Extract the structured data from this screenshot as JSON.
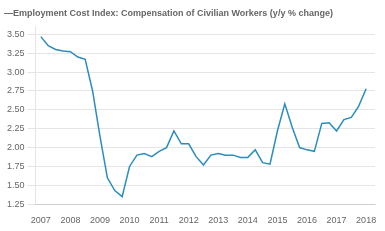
{
  "chart_data": {
    "type": "line",
    "title": "—Employment Cost Index: Compensation of Civilian Workers (y/y % change)",
    "color": "#2b8cbe",
    "x": [
      2007.0,
      2007.25,
      2007.5,
      2007.75,
      2008.0,
      2008.25,
      2008.5,
      2008.75,
      2009.0,
      2009.25,
      2009.5,
      2009.75,
      2010.0,
      2010.25,
      2010.5,
      2010.75,
      2011.0,
      2011.25,
      2011.5,
      2011.75,
      2012.0,
      2012.25,
      2012.5,
      2012.75,
      2013.0,
      2013.25,
      2013.5,
      2013.75,
      2014.0,
      2014.25,
      2014.5,
      2014.75,
      2015.0,
      2015.25,
      2015.5,
      2015.75,
      2016.0,
      2016.25,
      2016.5,
      2016.75,
      2017.0,
      2017.25,
      2017.5,
      2017.75,
      2018.0
    ],
    "values": [
      3.47,
      3.35,
      3.3,
      3.28,
      3.27,
      3.2,
      3.17,
      2.75,
      2.15,
      1.6,
      1.43,
      1.35,
      1.75,
      1.9,
      1.92,
      1.88,
      1.95,
      2.0,
      2.22,
      2.05,
      2.05,
      1.88,
      1.77,
      1.9,
      1.92,
      1.9,
      1.9,
      1.87,
      1.87,
      1.97,
      1.8,
      1.78,
      2.22,
      2.58,
      2.27,
      2.0,
      1.97,
      1.95,
      2.32,
      2.33,
      2.22,
      2.37,
      2.4,
      2.55,
      2.78
    ],
    "xlim": [
      2006.82,
      2018.3
    ],
    "xticks": [
      2007,
      2008,
      2009,
      2010,
      2011,
      2012,
      2013,
      2014,
      2015,
      2016,
      2017,
      2018
    ],
    "ylim": [
      1.25,
      3.6
    ],
    "yticks": [
      1.25,
      {
        "value": 1.5,
        "label": "1.50"
      },
      1.75,
      {
        "value": 2,
        "label": "2.00"
      },
      2.25,
      {
        "value": 2.5,
        "label": "2.50"
      },
      2.75,
      {
        "value": 3,
        "label": "3.00"
      },
      3.25,
      {
        "value": 3.5,
        "label": "3.50"
      }
    ],
    "grid": true
  }
}
